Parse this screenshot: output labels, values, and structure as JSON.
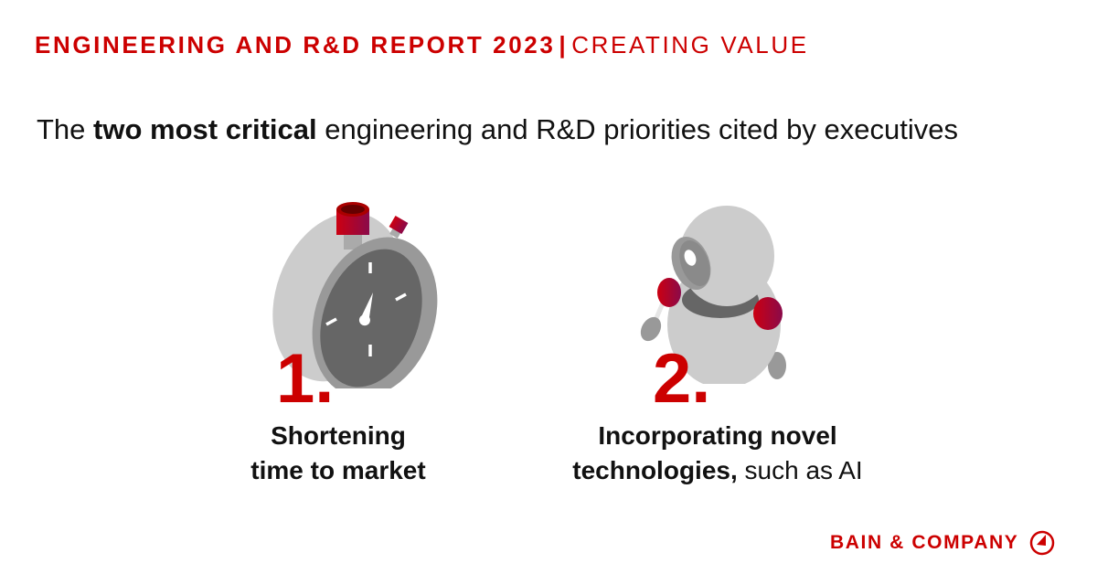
{
  "header": {
    "title": "ENGINEERING AND R&D REPORT 2023",
    "separator": "|",
    "subtitle": "CREATING VALUE"
  },
  "headline": {
    "prefix": "The ",
    "emphasis": "two most critical",
    "suffix": " engineering and R&D priorities cited by executives"
  },
  "priorities": [
    {
      "number": "1.",
      "icon": "stopwatch-icon",
      "line1_bold": "Shortening",
      "line2_bold": "time to market",
      "line2_regular": ""
    },
    {
      "number": "2.",
      "icon": "robot-icon",
      "line1_bold": "Incorporating novel",
      "line2_bold": "technologies,",
      "line2_regular": " such as AI"
    }
  ],
  "logo": {
    "text": "BAIN & COMPANY"
  },
  "colors": {
    "accent": "#cc0000",
    "gray_light": "#cccccc",
    "gray_mid": "#999999",
    "gray_dark": "#666666"
  }
}
